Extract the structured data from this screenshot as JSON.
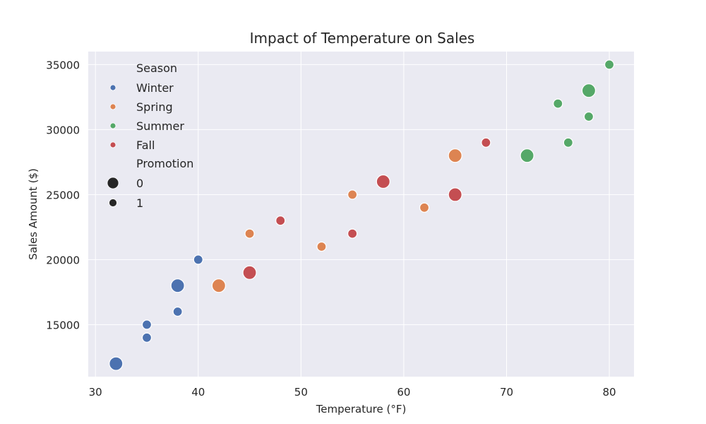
{
  "chart_data": {
    "type": "scatter",
    "title": "Impact of Temperature on Sales",
    "xlabel": "Temperature (°F)",
    "ylabel": "Sales Amount ($)",
    "xlim": [
      29.3,
      82.4
    ],
    "ylim": [
      11000,
      36000
    ],
    "xticks": [
      30,
      40,
      50,
      60,
      70,
      80
    ],
    "yticks": [
      15000,
      20000,
      25000,
      30000,
      35000
    ],
    "grid": true,
    "legend_position": "top-left",
    "legend": {
      "hue_title": "Season",
      "size_title": "Promotion",
      "size_entries": [
        {
          "label": "0",
          "size": "large"
        },
        {
          "label": "1",
          "size": "small"
        }
      ]
    },
    "series": [
      {
        "name": "Winter",
        "color": "#4c72b0",
        "points": [
          {
            "x": 32,
            "y": 12000,
            "promotion": 0
          },
          {
            "x": 35,
            "y": 14000,
            "promotion": 1
          },
          {
            "x": 35,
            "y": 15000,
            "promotion": 1
          },
          {
            "x": 38,
            "y": 16000,
            "promotion": 1
          },
          {
            "x": 38,
            "y": 18000,
            "promotion": 0
          },
          {
            "x": 40,
            "y": 20000,
            "promotion": 1
          }
        ]
      },
      {
        "name": "Spring",
        "color": "#dd8452",
        "points": [
          {
            "x": 42,
            "y": 18000,
            "promotion": 0
          },
          {
            "x": 45,
            "y": 22000,
            "promotion": 1
          },
          {
            "x": 52,
            "y": 21000,
            "promotion": 1
          },
          {
            "x": 55,
            "y": 25000,
            "promotion": 1
          },
          {
            "x": 62,
            "y": 24000,
            "promotion": 1
          },
          {
            "x": 65,
            "y": 28000,
            "promotion": 0
          }
        ]
      },
      {
        "name": "Summer",
        "color": "#55a868",
        "points": [
          {
            "x": 72,
            "y": 28000,
            "promotion": 0
          },
          {
            "x": 75,
            "y": 32000,
            "promotion": 1
          },
          {
            "x": 76,
            "y": 29000,
            "promotion": 1
          },
          {
            "x": 78,
            "y": 31000,
            "promotion": 1
          },
          {
            "x": 78,
            "y": 33000,
            "promotion": 0
          },
          {
            "x": 80,
            "y": 35000,
            "promotion": 1
          }
        ]
      },
      {
        "name": "Fall",
        "color": "#c44e52",
        "points": [
          {
            "x": 45,
            "y": 19000,
            "promotion": 0
          },
          {
            "x": 48,
            "y": 23000,
            "promotion": 1
          },
          {
            "x": 55,
            "y": 22000,
            "promotion": 1
          },
          {
            "x": 58,
            "y": 26000,
            "promotion": 0
          },
          {
            "x": 65,
            "y": 25000,
            "promotion": 0
          },
          {
            "x": 68,
            "y": 29000,
            "promotion": 1
          }
        ]
      }
    ],
    "colors": {
      "plot_background": "#eaeaf2",
      "grid": "#ffffff",
      "marker_edge": "#ffffff",
      "legend_size_marker": "#262626"
    }
  }
}
